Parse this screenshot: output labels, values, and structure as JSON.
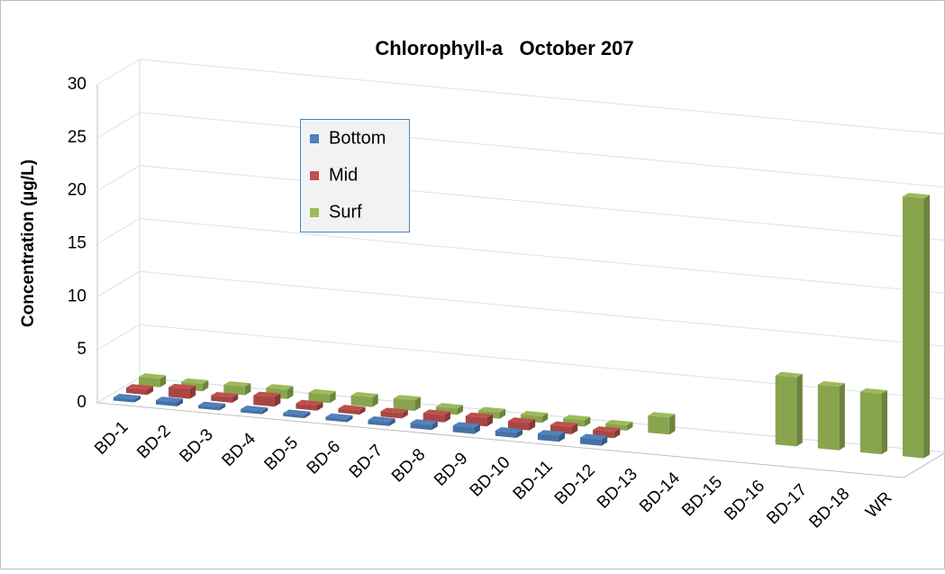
{
  "chart_data": {
    "type": "bar3d",
    "title": "Chlorophyll-a   October 207",
    "y_label": "Concentration (µg/L)",
    "categories": [
      "BD-1",
      "BD-2",
      "BD-3",
      "BD-4",
      "BD-5",
      "BD-6",
      "BD-7",
      "BD-8",
      "BD-9",
      "BD-10",
      "BD-11",
      "BD-12",
      "BD-13",
      "BD-14",
      "BD-15",
      "BD-16",
      "BD-17",
      "BD-18",
      "WR"
    ],
    "series": [
      {
        "name": "Bottom",
        "color": "#4f81bd",
        "values": [
          0.3,
          0.4,
          0.3,
          0.3,
          0.3,
          0.3,
          0.4,
          0.5,
          0.6,
          0.5,
          0.6,
          0.6,
          null,
          null,
          null,
          null,
          null,
          null,
          null
        ]
      },
      {
        "name": "Mid",
        "color": "#c0504d",
        "values": [
          0.5,
          0.9,
          0.5,
          0.9,
          0.5,
          0.4,
          0.5,
          0.7,
          0.8,
          0.7,
          0.7,
          0.6,
          null,
          null,
          null,
          null,
          null,
          null,
          null
        ]
      },
      {
        "name": "Surf",
        "color": "#9bbb59",
        "values": [
          0.8,
          0.7,
          0.8,
          0.9,
          0.8,
          0.9,
          1.0,
          0.6,
          0.6,
          0.6,
          0.6,
          0.5,
          1.6,
          null,
          null,
          6.5,
          6.0,
          5.7,
          24.5
        ]
      }
    ],
    "ylim": [
      0,
      30
    ],
    "yticks": [
      0,
      5,
      10,
      15,
      20,
      25,
      30
    ],
    "grid": true
  }
}
